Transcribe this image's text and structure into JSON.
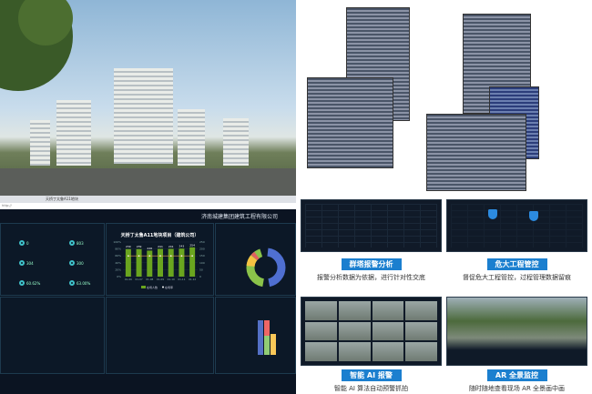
{
  "dashboard": {
    "browser_tab": "天桥丁太鲁A11地块",
    "company": "济南城建集团建筑工程有限公司",
    "chart_title": "天桥丁太鲁A11地块项目（建筑公司）",
    "legend_bar": "在场人数",
    "legend_line": "在场率"
  },
  "chart_data": {
    "type": "bar",
    "title": "天桥丁太鲁A11地块项目（建筑公司）",
    "categories": [
      "01-06",
      "01-07",
      "01-08",
      "01-09",
      "01-10",
      "01-11",
      "01-12"
    ],
    "series": [
      {
        "name": "在场人数",
        "values": [
          239,
          239,
          226,
          241,
          241,
          243,
          254
        ],
        "color": "#6aa51f"
      },
      {
        "name": "在场率",
        "values": [
          60,
          60,
          60,
          60,
          60,
          60,
          60
        ],
        "color": "#e0a050"
      }
    ],
    "ylim_left": [
      0,
      100
    ],
    "ylim_right": [
      0,
      300
    ],
    "yticks_left": [
      "0%",
      "20%",
      "40%",
      "60%",
      "80%",
      "100%"
    ],
    "yticks_right": [
      "0",
      "50",
      "100",
      "150",
      "200",
      "250",
      "300"
    ]
  },
  "tiles": [
    {
      "title": "群塔报警分析",
      "caption": "报警分析数据为依据，进行针对性交底"
    },
    {
      "title": "危大工程管控",
      "caption": "督促危大工程管控，过程管理数据留痕"
    },
    {
      "title": "智能 AI 报警",
      "caption": "智能 AI 算法自动预警抓拍"
    },
    {
      "title": "AR 全景监控",
      "caption": "随时随地查看现场 AR 全景画中画"
    }
  ],
  "colors": {
    "accent": "#1b7fcf",
    "dash_bg": "#0b1422",
    "bar": "#6aa51f"
  }
}
